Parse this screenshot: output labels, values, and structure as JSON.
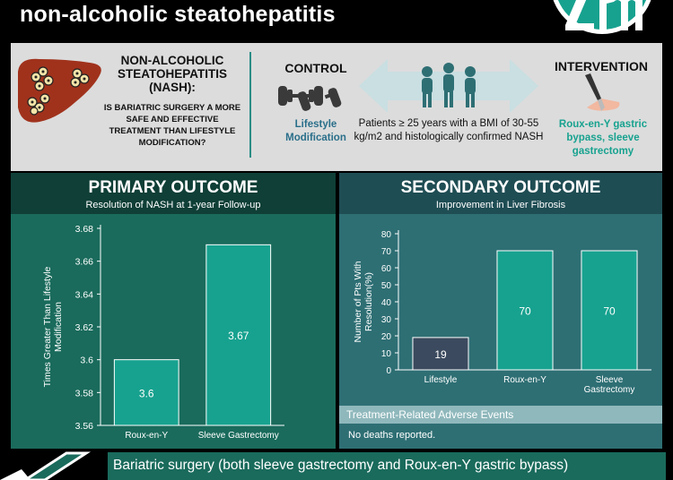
{
  "header": {
    "title": "non-alcoholic steatohepatitis"
  },
  "summary": {
    "study_title": "NON-ALCOHOLIC STEATOHEPATITIS (NASH):",
    "question": "IS BARIATRIC SURGERY A MORE SAFE AND EFFECTIVE TREATMENT THAN LIFESTYLE MODIFICATION?",
    "control_label": "CONTROL",
    "control_value": "Lifestyle Modification",
    "patients": "Patients ≥ 25 years with a BMI of 30-55 kg/m2 and histologically confirmed NASH",
    "intervention_label": "INTERVENTION",
    "intervention_value": "Roux-en-Y gastric bypass, sleeve gastrectomy"
  },
  "primary": {
    "title": "PRIMARY OUTCOME",
    "subtitle": "Resolution of NASH at 1-year Follow-up"
  },
  "secondary": {
    "title": "SECONDARY OUTCOME",
    "subtitle": "Improvement in Liver Fibrosis",
    "ae_title": "Treatment-Related Adverse Events",
    "ae_text": "No deaths reported."
  },
  "conclusion": {
    "text": "Bariatric surgery (both sleeve gastrectomy and Roux-en-Y gastric bypass)"
  },
  "colors": {
    "teal_bar": "#17a28f",
    "dark_bar": "#3b4a5e",
    "primary_panel": "#1a6b5c",
    "secondary_panel": "#2e6f74"
  },
  "chart_data": [
    {
      "type": "bar",
      "categories": [
        "Roux-en-Y",
        "Sleeve Gastrectomy"
      ],
      "values": [
        3.6,
        3.67
      ],
      "data_labels": [
        "3.6",
        "3.67"
      ],
      "ylabel": "Times Greater Than Lifestyle Modification",
      "ylim": [
        3.56,
        3.68
      ],
      "yticks": [
        3.56,
        3.58,
        3.6,
        3.62,
        3.64,
        3.66,
        3.68
      ],
      "ytick_labels": [
        "3.56",
        "3.58",
        "3.6",
        "3.62",
        "3.64",
        "3.66",
        "3.68"
      ],
      "grid": false
    },
    {
      "type": "bar",
      "categories": [
        "Lifestyle",
        "Roux-en-Y",
        "Sleeve Gastrectomy"
      ],
      "values": [
        19,
        70,
        70
      ],
      "data_labels": [
        "19",
        "70",
        "70"
      ],
      "bar_colors": [
        "#3b4a5e",
        "#17a28f",
        "#17a28f"
      ],
      "ylabel": "Number of Pts With Resolution(%)",
      "ylim": [
        0,
        80
      ],
      "yticks": [
        0,
        10,
        20,
        30,
        40,
        50,
        60,
        70,
        80
      ],
      "ytick_labels": [
        "0",
        "10",
        "20",
        "30",
        "40",
        "50",
        "60",
        "70",
        "80"
      ],
      "grid": false
    }
  ]
}
